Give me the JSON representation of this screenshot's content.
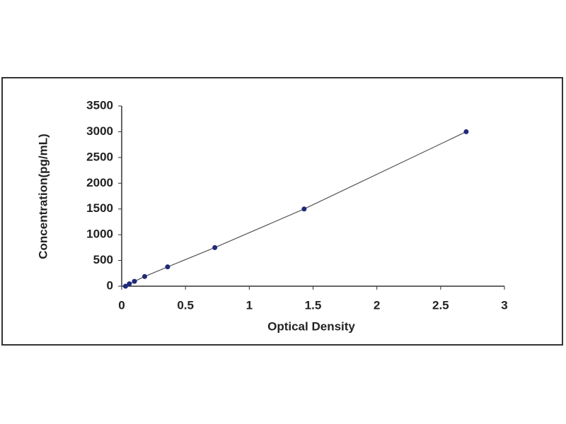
{
  "chart_data": {
    "type": "scatter",
    "x_label": "Optical Density",
    "y_label": "Concentration(pg/mL)",
    "series": [
      {
        "x": [
          0.03,
          0.06,
          0.1,
          0.18,
          0.36,
          0.73,
          1.43,
          2.7
        ],
        "values": [
          0,
          47,
          94,
          188,
          375,
          750,
          1500,
          3000
        ],
        "color": "#1f2a7a"
      }
    ],
    "connect": true,
    "line_color": "#555555",
    "xlim": [
      0,
      3
    ],
    "xticks": [
      0,
      0.5,
      1,
      1.5,
      2,
      2.5,
      3
    ],
    "ylim": [
      0,
      3500
    ],
    "yticks": [
      0,
      500,
      1000,
      1500,
      2000,
      2500,
      3000,
      3500
    ],
    "grid": false
  }
}
